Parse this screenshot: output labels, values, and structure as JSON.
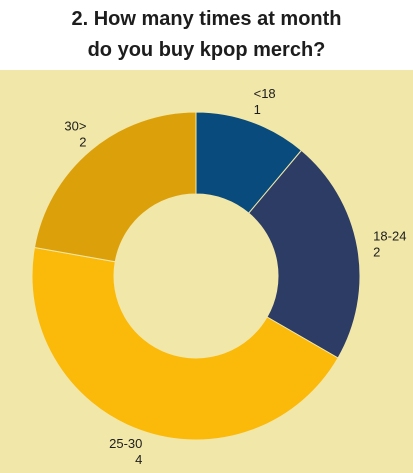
{
  "title_lines": [
    "2. How many times at month",
    "do you buy kpop merch?"
  ],
  "chart_data": {
    "type": "pie",
    "donut": true,
    "title": "2. How many times at month do you buy kpop merch?",
    "categories": [
      "<18",
      "18-24",
      "25-30",
      "30>"
    ],
    "values": [
      1,
      2,
      4,
      2
    ],
    "colors": [
      "#084b7c",
      "#2d3c64",
      "#fbb909",
      "#dca10a"
    ],
    "legend": "none",
    "data_labels": "outside"
  }
}
